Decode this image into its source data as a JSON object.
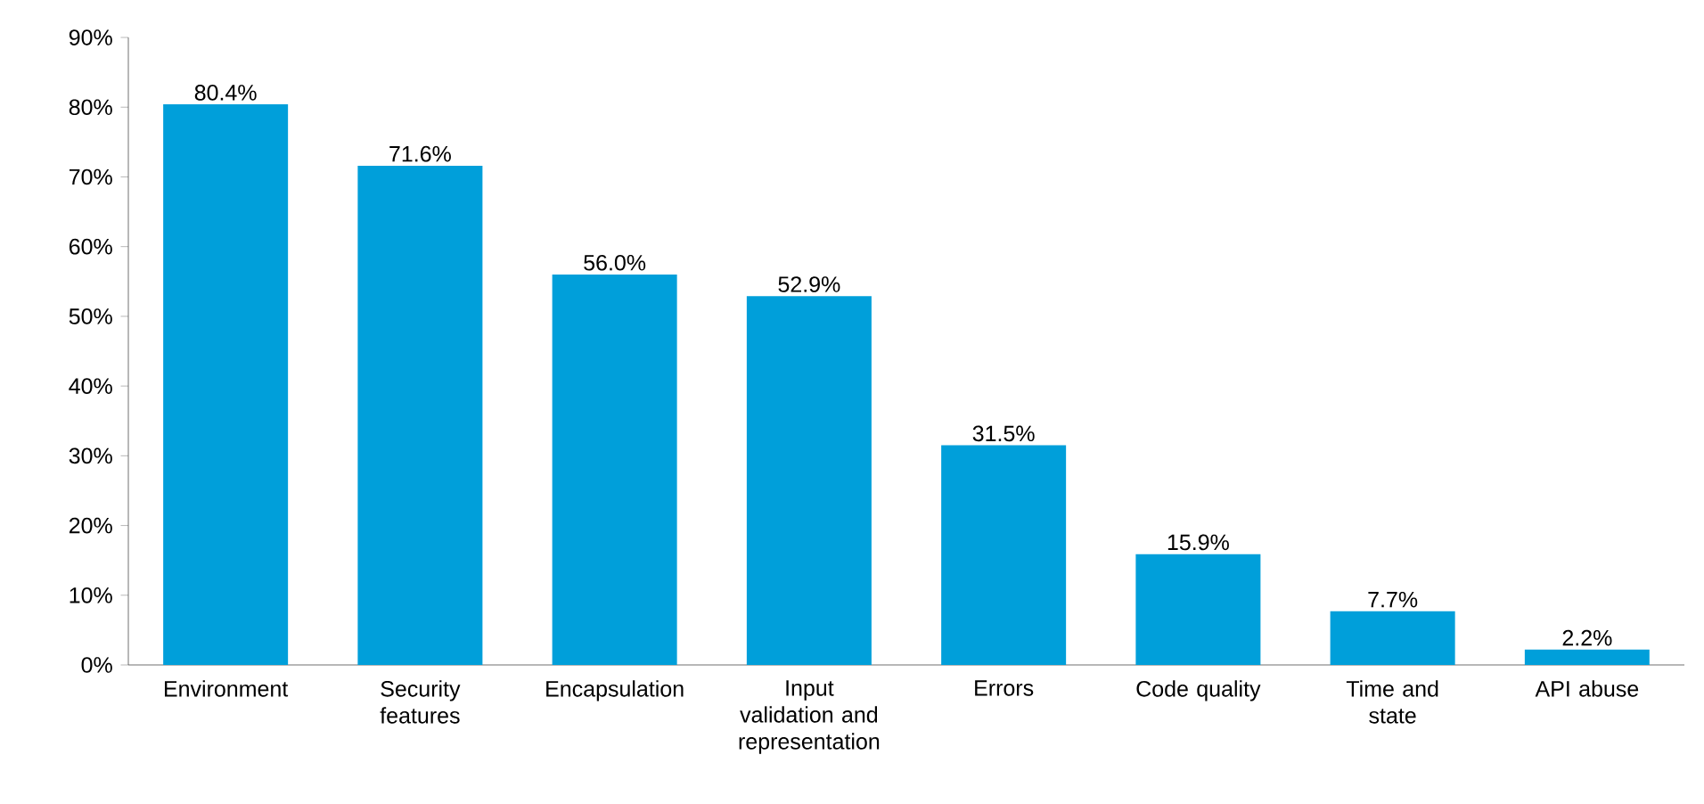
{
  "chart_data": {
    "type": "bar",
    "categories": [
      "Environment",
      "Security features",
      "Encapsulation",
      "Input validation and representation",
      "Errors",
      "Code quality",
      "Time and state",
      "API abuse"
    ],
    "values": [
      80.4,
      71.6,
      56.0,
      52.9,
      31.5,
      15.9,
      7.7,
      2.2
    ],
    "value_labels": [
      "80.4%",
      "71.6%",
      "56.0%",
      "52.9%",
      "31.5%",
      "15.9%",
      "7.7%",
      "2.2%"
    ],
    "color": "#009fda",
    "ylim": [
      0,
      90
    ],
    "yticks": [
      {
        "value": 0,
        "label": "0%"
      },
      {
        "value": 10,
        "label": "10%"
      },
      {
        "value": 20,
        "label": "20%"
      },
      {
        "value": 30,
        "label": "30%"
      },
      {
        "value": 40,
        "label": "40%"
      },
      {
        "value": 50,
        "label": "50%"
      },
      {
        "value": 60,
        "label": "60%"
      },
      {
        "value": 70,
        "label": "70%"
      },
      {
        "value": 80,
        "label": "80%"
      },
      {
        "value": 90,
        "label": "90%"
      }
    ],
    "grid": false
  }
}
